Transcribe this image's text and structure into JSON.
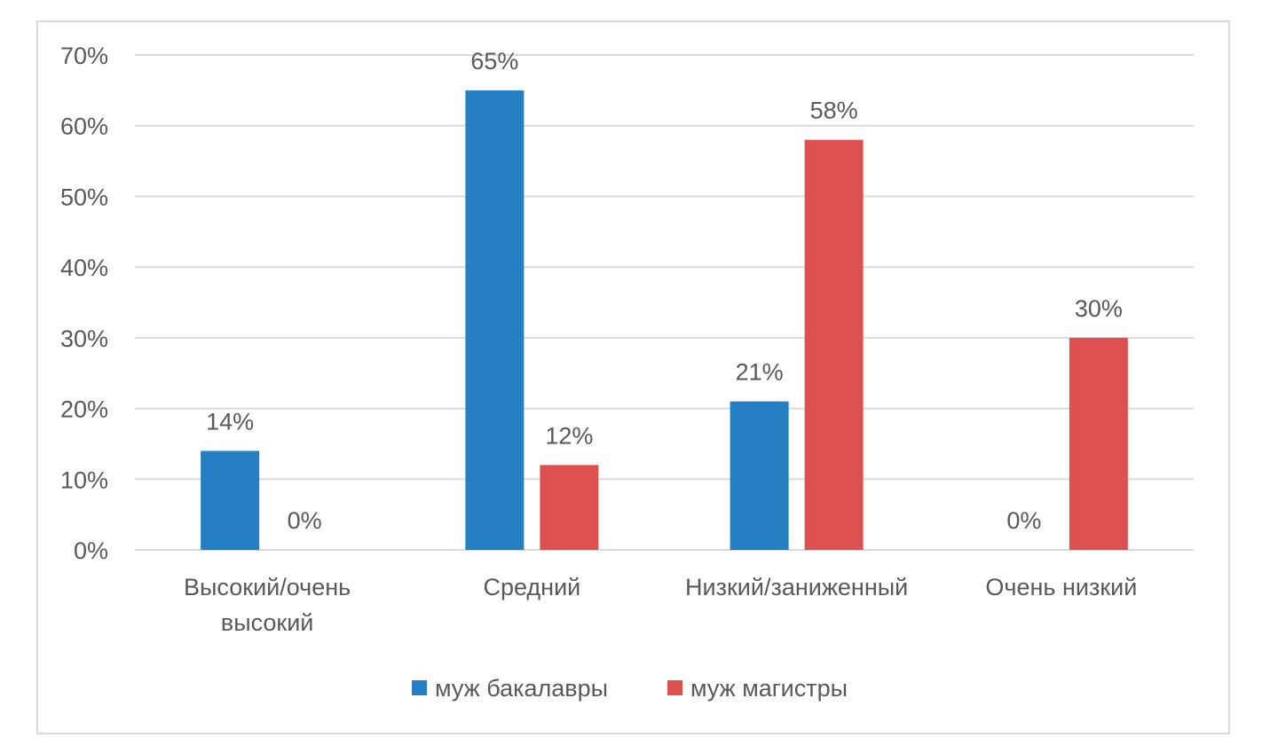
{
  "chart_data": {
    "type": "bar",
    "title": "",
    "xlabel": "",
    "ylabel": "",
    "ylim": [
      0,
      70
    ],
    "y_ticks": [
      0,
      10,
      20,
      30,
      40,
      50,
      60,
      70
    ],
    "y_tick_suffix": "%",
    "grid": true,
    "legend_position": "bottom",
    "categories": [
      [
        "Высокий/очень",
        "высокий"
      ],
      [
        "Средний"
      ],
      [
        "Низкий/заниженный"
      ],
      [
        "Очень низкий"
      ]
    ],
    "series": [
      {
        "name": "муж бакалавры",
        "color": "#2580c3",
        "values": [
          14,
          65,
          21,
          0
        ],
        "labels": [
          "14%",
          "65%",
          "21%",
          "0%"
        ]
      },
      {
        "name": "муж магистры",
        "color": "#dc5050",
        "values": [
          0,
          12,
          58,
          30
        ],
        "labels": [
          "0%",
          "12%",
          "58%",
          "30%"
        ]
      }
    ]
  }
}
